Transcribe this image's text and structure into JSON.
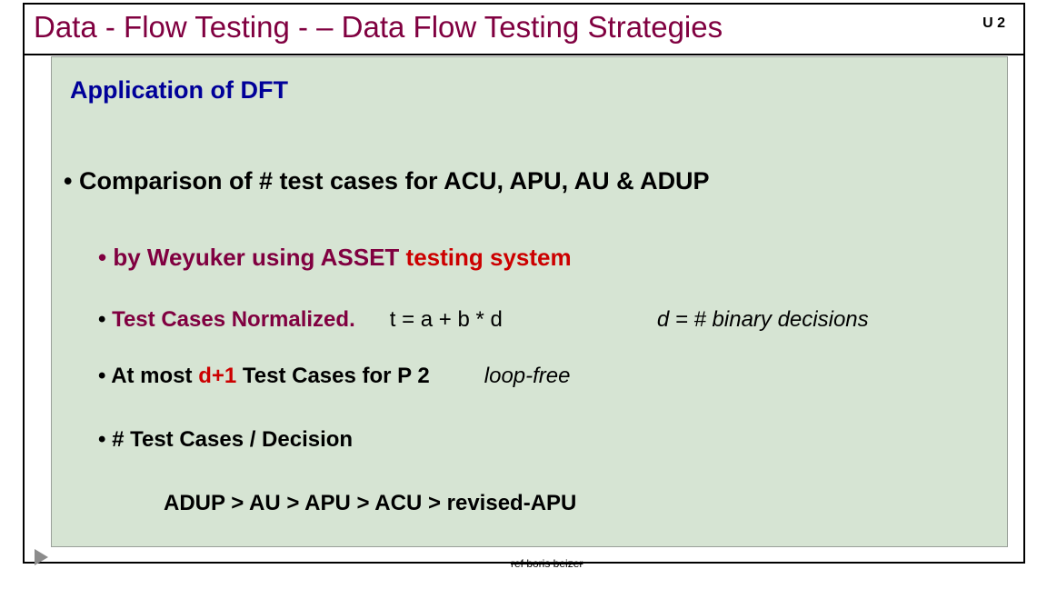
{
  "header": {
    "title": "Data - Flow Testing   - – Data Flow Testing Strategies",
    "unit": "U 2"
  },
  "panel": {
    "app_title": "Application of DFT",
    "compare": "• Comparison of # test cases for  ACU, APU, AU & ADUP",
    "sub1_prefix": "• by  Weyuker using ASSET ",
    "sub1_red": "testing system",
    "sub2_bullet": "•  ",
    "sub2_label": "Test Cases Normalized.",
    "sub2_eq": "t = a + b * d",
    "sub2_note": "d = # binary decisions",
    "sub3_bullet": "•  ",
    "sub3_t1a": "At most ",
    "sub3_d1": " d+1 ",
    "sub3_t1b": "Test Cases for P 2",
    "sub3_note": "loop-free",
    "sub4": "•  # Test Cases / Decision",
    "chain": "ADUP  >  AU    >    APU   >  ACU   >  revised-APU"
  },
  "footer": "ref boris beizer",
  "colors": {
    "maroon": "#800040",
    "navy": "#000099",
    "red": "#cc0000",
    "panel_bg": "#d6e4d3"
  }
}
